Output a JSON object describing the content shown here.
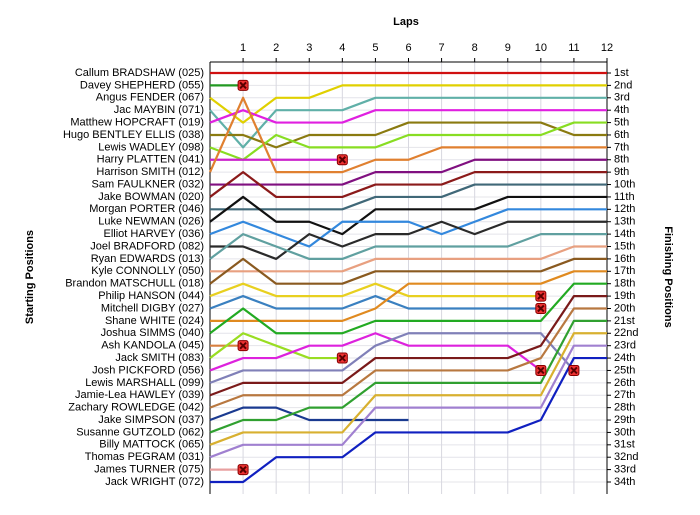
{
  "chart_data": {
    "type": "line",
    "title": "Laps",
    "ylabel": "Starting Positions",
    "y2label": "Finishing Positions",
    "x": [
      0,
      1,
      2,
      3,
      4,
      5,
      6,
      7,
      8,
      9,
      10,
      11,
      12
    ],
    "xlim": [
      0,
      12
    ],
    "xticks": [
      1,
      2,
      3,
      4,
      5,
      6,
      7,
      8,
      9,
      10,
      11,
      12
    ],
    "ylim": [
      1,
      34
    ],
    "inverted": true,
    "grid": true,
    "yticks": [
      {
        "value": 1,
        "label": "1st"
      },
      {
        "value": 2,
        "label": "2nd"
      },
      {
        "value": 3,
        "label": "3rd"
      },
      {
        "value": 4,
        "label": "4th"
      },
      {
        "value": 5,
        "label": "5th"
      },
      {
        "value": 6,
        "label": "6th"
      },
      {
        "value": 7,
        "label": "7th"
      },
      {
        "value": 8,
        "label": "8th"
      },
      {
        "value": 9,
        "label": "9th"
      },
      {
        "value": 10,
        "label": "10th"
      },
      {
        "value": 11,
        "label": "11th"
      },
      {
        "value": 12,
        "label": "12th"
      },
      {
        "value": 13,
        "label": "13th"
      },
      {
        "value": 14,
        "label": "14th"
      },
      {
        "value": 15,
        "label": "15th"
      },
      {
        "value": 16,
        "label": "16th"
      },
      {
        "value": 17,
        "label": "17th"
      },
      {
        "value": 18,
        "label": "18th"
      },
      {
        "value": 19,
        "label": "19th"
      },
      {
        "value": 20,
        "label": "20th"
      },
      {
        "value": 21,
        "label": "21st"
      },
      {
        "value": 22,
        "label": "22nd"
      },
      {
        "value": 23,
        "label": "23rd"
      },
      {
        "value": 24,
        "label": "24th"
      },
      {
        "value": 25,
        "label": "25th"
      },
      {
        "value": 26,
        "label": "26th"
      },
      {
        "value": 27,
        "label": "27th"
      },
      {
        "value": 28,
        "label": "28th"
      },
      {
        "value": 29,
        "label": "29th"
      },
      {
        "value": 30,
        "label": "30th"
      },
      {
        "value": 31,
        "label": "31st"
      },
      {
        "value": 32,
        "label": "32nd"
      },
      {
        "value": 33,
        "label": "33rd"
      },
      {
        "value": 34,
        "label": "34th"
      }
    ],
    "series": [
      {
        "name": "Callum BRADSHAW (025)",
        "color": "#d01010",
        "values": [
          1,
          1,
          1,
          1,
          1,
          1,
          1,
          1,
          1,
          1,
          1,
          1,
          1
        ]
      },
      {
        "name": "Davey SHEPHERD (055)",
        "color": "#229922",
        "values": [
          2,
          2,
          null,
          null,
          null,
          null,
          null,
          null,
          null,
          null,
          null,
          null,
          null
        ],
        "retired": true
      },
      {
        "name": "Angus FENDER (067)",
        "color": "#e0d000",
        "values": [
          3,
          5,
          3,
          3,
          2,
          2,
          2,
          2,
          2,
          2,
          2,
          2,
          2
        ]
      },
      {
        "name": "Jac MAYBIN (071)",
        "color": "#60b0a8",
        "values": [
          4,
          7,
          4,
          4,
          4,
          3,
          3,
          3,
          3,
          3,
          3,
          3,
          3
        ]
      },
      {
        "name": "Matthew HOPCRAFT (019)",
        "color": "#e020e0",
        "values": [
          5,
          4,
          5,
          5,
          5,
          4,
          4,
          4,
          4,
          4,
          4,
          4,
          4
        ]
      },
      {
        "name": "Hugo BENTLEY ELLIS (038)",
        "color": "#8a7a10",
        "values": [
          6,
          6,
          7,
          6,
          6,
          6,
          5,
          5,
          5,
          5,
          5,
          6,
          6
        ]
      },
      {
        "name": "Lewis WADLEY (098)",
        "color": "#88dd22",
        "values": [
          7,
          8,
          6,
          7,
          7,
          7,
          6,
          6,
          6,
          6,
          6,
          5,
          5
        ]
      },
      {
        "name": "Harry PLATTEN (041)",
        "color": "#cc22cc",
        "values": [
          8,
          8,
          8,
          8,
          8,
          null,
          null,
          null,
          null,
          null,
          null,
          null,
          null
        ],
        "retired": true
      },
      {
        "name": "Harrison SMITH (012)",
        "color": "#e08030",
        "values": [
          9,
          3,
          9,
          9,
          9,
          8,
          8,
          7,
          7,
          7,
          7,
          7,
          7
        ]
      },
      {
        "name": "Sam FAULKNER (032)",
        "color": "#801080",
        "values": [
          10,
          10,
          10,
          10,
          10,
          9,
          9,
          9,
          8,
          8,
          8,
          8,
          8
        ]
      },
      {
        "name": "Jake BOWMAN (020)",
        "color": "#8b1a1a",
        "values": [
          11,
          9,
          11,
          11,
          11,
          10,
          10,
          10,
          9,
          9,
          9,
          9,
          9
        ]
      },
      {
        "name": "Morgan PORTER (046)",
        "color": "#406878",
        "values": [
          12,
          12,
          12,
          12,
          12,
          11,
          11,
          11,
          10,
          10,
          10,
          10,
          10
        ]
      },
      {
        "name": "Luke NEWMAN (026)",
        "color": "#111111",
        "values": [
          13,
          11,
          13,
          13,
          14,
          12,
          12,
          12,
          12,
          11,
          11,
          11,
          11
        ]
      },
      {
        "name": "Elliot HARVEY (036)",
        "color": "#3388dd",
        "values": [
          14,
          13,
          14,
          15,
          13,
          13,
          13,
          14,
          13,
          12,
          12,
          12,
          12
        ]
      },
      {
        "name": "Joel BRADFORD (082)",
        "color": "#2a2a2a",
        "values": [
          15,
          15,
          16,
          14,
          15,
          14,
          14,
          13,
          14,
          13,
          13,
          13,
          13
        ]
      },
      {
        "name": "Ryan EDWARDS (013)",
        "color": "#60a0a0",
        "values": [
          16,
          14,
          15,
          16,
          16,
          15,
          15,
          15,
          15,
          15,
          14,
          14,
          14
        ]
      },
      {
        "name": "Kyle CONNOLLY (050)",
        "color": "#e8a080",
        "values": [
          17,
          17,
          17,
          17,
          17,
          16,
          16,
          16,
          16,
          16,
          16,
          15,
          15
        ]
      },
      {
        "name": "Brandon MATSCHULL (018)",
        "color": "#8a5a20",
        "values": [
          18,
          16,
          18,
          18,
          18,
          17,
          17,
          17,
          17,
          17,
          17,
          16,
          16
        ]
      },
      {
        "name": "Philip HANSON (044)",
        "color": "#e8d020",
        "values": [
          19,
          18,
          19,
          19,
          19,
          18,
          19,
          19,
          19,
          19,
          19,
          null,
          null
        ],
        "retired": true
      },
      {
        "name": "Mitchell DIGBY (027)",
        "color": "#3a80c0",
        "values": [
          20,
          19,
          20,
          20,
          20,
          19,
          20,
          20,
          20,
          20,
          20,
          null,
          null
        ],
        "retired": true
      },
      {
        "name": "Shane WHITE (024)",
        "color": "#e08a20",
        "values": [
          21,
          21,
          21,
          21,
          21,
          20,
          18,
          18,
          18,
          18,
          18,
          17,
          17
        ]
      },
      {
        "name": "Joshua SIMMS (040)",
        "color": "#22aa22",
        "values": [
          22,
          20,
          22,
          22,
          22,
          21,
          21,
          21,
          21,
          21,
          21,
          18,
          18
        ]
      },
      {
        "name": "Ash KANDOLA (045)",
        "color": "#d88040",
        "values": [
          23,
          23,
          null,
          null,
          null,
          null,
          null,
          null,
          null,
          null,
          null,
          null,
          null
        ],
        "retired": true
      },
      {
        "name": "Jack SMITH (083)",
        "color": "#99dd22",
        "values": [
          24,
          22,
          23,
          24,
          24,
          null,
          null,
          null,
          null,
          null,
          null,
          null,
          null
        ],
        "retired": true
      },
      {
        "name": "Josh PICKFORD (056)",
        "color": "#dd22dd",
        "values": [
          25,
          24,
          24,
          23,
          23,
          22,
          23,
          23,
          23,
          23,
          25,
          null,
          null
        ],
        "retired": true
      },
      {
        "name": "Lewis MARSHALL (099)",
        "color": "#8080b8",
        "values": [
          26,
          25,
          25,
          25,
          25,
          23,
          22,
          22,
          22,
          22,
          22,
          25,
          null
        ],
        "retired": true
      },
      {
        "name": "Jamie-Lea HAWLEY (039)",
        "color": "#7a1a1a",
        "values": [
          27,
          26,
          26,
          26,
          26,
          24,
          24,
          24,
          24,
          24,
          23,
          19,
          19
        ]
      },
      {
        "name": "Zachary ROWLEDGE (042)",
        "color": "#b87840",
        "values": [
          28,
          27,
          27,
          27,
          27,
          25,
          25,
          25,
          25,
          25,
          24,
          20,
          20
        ]
      },
      {
        "name": "Jake SIMPSON (037)",
        "color": "#1a3a90",
        "values": [
          29,
          28,
          28,
          29,
          29,
          29,
          29,
          null,
          null,
          null,
          null,
          null,
          null
        ]
      },
      {
        "name": "Susanne GUTZOLD (062)",
        "color": "#30a030",
        "values": [
          30,
          29,
          29,
          28,
          28,
          26,
          26,
          26,
          26,
          26,
          26,
          21,
          21
        ]
      },
      {
        "name": "Billy MATTOCK (065)",
        "color": "#d8b030",
        "values": [
          31,
          30,
          30,
          30,
          30,
          27,
          27,
          27,
          27,
          27,
          27,
          22,
          22
        ]
      },
      {
        "name": "Thomas PEGRAM (031)",
        "color": "#a080d0",
        "values": [
          32,
          31,
          31,
          31,
          31,
          28,
          28,
          28,
          28,
          28,
          28,
          23,
          23
        ]
      },
      {
        "name": "James TURNER (075)",
        "color": "#e8a0a0",
        "values": [
          33,
          33,
          null,
          null,
          null,
          null,
          null,
          null,
          null,
          null,
          null,
          null,
          null
        ],
        "retired": true
      },
      {
        "name": "Jack WRIGHT (072)",
        "color": "#1020c0",
        "values": [
          34,
          34,
          32,
          32,
          32,
          30,
          30,
          30,
          30,
          30,
          29,
          24,
          24
        ]
      }
    ]
  }
}
